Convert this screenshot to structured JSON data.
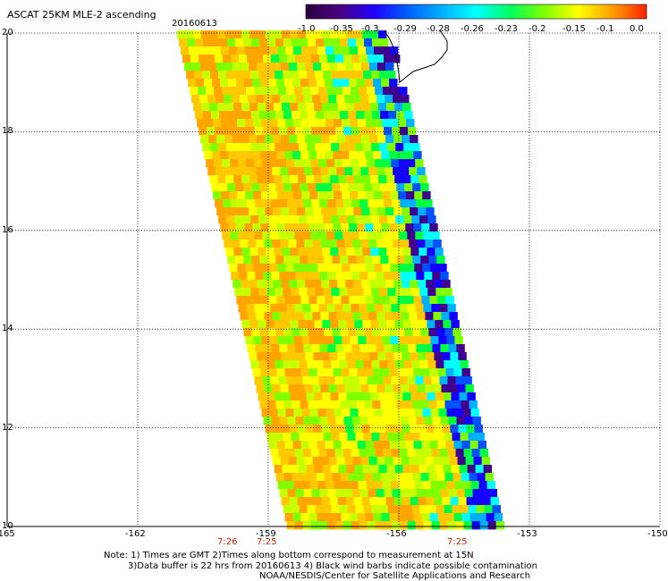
{
  "header": {
    "title": "ASCAT 25KM MLE-2 ascending",
    "date": "20160613"
  },
  "colorbar": {
    "tick_labels": [
      "-1.0",
      "-0.35",
      "-0.3",
      "-0.29",
      "-0.28",
      "-0.26",
      "-0.23",
      "-0.2",
      "-0.15",
      "-0.1",
      "0.0"
    ],
    "colors": [
      "#2a0040",
      "#4a0080",
      "#2000ff",
      "#0060ff",
      "#00b0ff",
      "#00ffff",
      "#00ff60",
      "#80ff00",
      "#ffff00",
      "#ffa000",
      "#ff2000"
    ]
  },
  "map": {
    "lat_labels": [
      "20",
      "18",
      "16",
      "14",
      "12",
      "10"
    ],
    "lon_labels": [
      "-165",
      "-162",
      "-159",
      "-156",
      "-153",
      "-150"
    ],
    "time_labels": [
      "7:26",
      "7:25",
      "7:25"
    ],
    "grid": true,
    "coastline_color": "#000000",
    "swath_palette": {
      "orange": "#ffa500",
      "yellow_orange": "#ffc800",
      "yellow": "#ffff00",
      "yellow_green": "#c8ff00",
      "light_green": "#80ff00",
      "green": "#00ff40",
      "cyan": "#00ffff",
      "sky_blue": "#00b0ff",
      "blue": "#0050ff",
      "deep_blue": "#1400ff",
      "purple": "#400090"
    }
  },
  "notes": {
    "line1": "Note: 1) Times are GMT 2)Times along bottom correspond to measurement at 15N",
    "line2": "3)Data buffer is 22 hrs from 20160613 4) Black wind barbs indicate possible contamination",
    "line3": "NOAA/NESDIS/Center for Satellite Applications and Research"
  }
}
